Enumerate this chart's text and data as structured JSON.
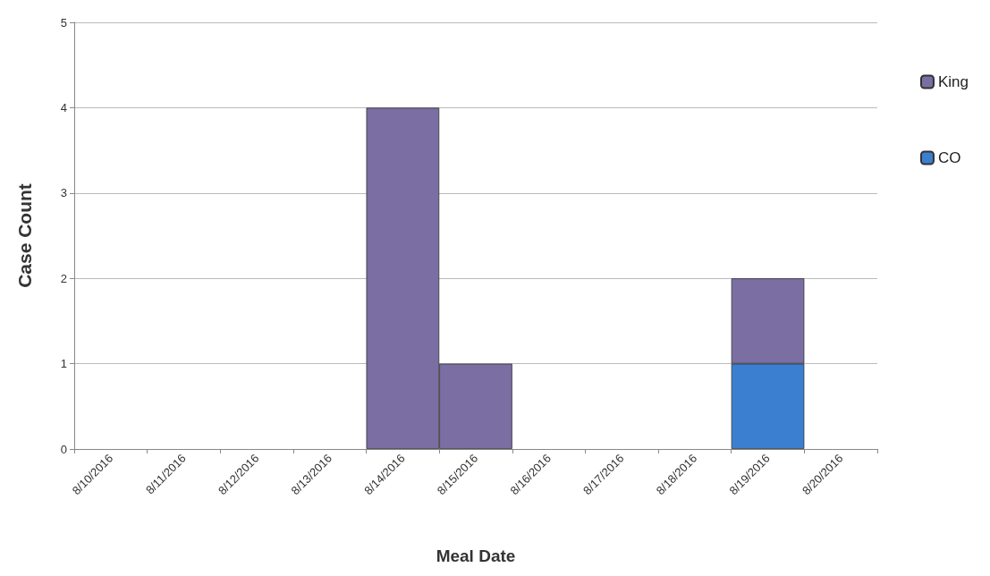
{
  "chart_data": {
    "type": "bar",
    "stacked": true,
    "xlabel": "Meal Date",
    "ylabel": "Case Count",
    "categories": [
      "8/10/2016",
      "8/11/2016",
      "8/12/2016",
      "8/13/2016",
      "8/14/2016",
      "8/15/2016",
      "8/16/2016",
      "8/17/2016",
      "8/18/2016",
      "8/19/2016",
      "8/20/2016"
    ],
    "series": [
      {
        "name": "CO",
        "color": "#3b7fd0",
        "values": [
          0,
          0,
          0,
          0,
          0,
          0,
          0,
          0,
          0,
          1,
          0
        ]
      },
      {
        "name": "King",
        "color": "#7a6ea3",
        "values": [
          0,
          0,
          0,
          0,
          4,
          1,
          0,
          0,
          0,
          1,
          0
        ]
      }
    ],
    "ylim": [
      0,
      5
    ],
    "yticks": [
      0,
      1,
      2,
      3,
      4,
      5
    ],
    "grid": "y",
    "legend": "top right"
  }
}
